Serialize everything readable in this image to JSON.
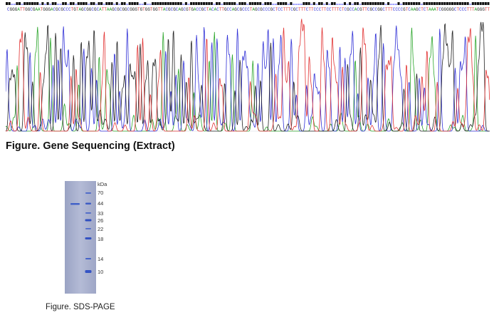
{
  "sequence": "CGGGATTGGCGAATGGGACGCGCCCTGTAGCGGCGCATTAAGCGCGGCGGGTGTGGTGGTTACGCGCAGCGTGACCGCTACACTTGCCAGCGCCCTAGCGCCCGCTCCTTTCGCTTTCTTCCCTTCCTTTCTCGCCACGTTCGCCGGCTTTCCCCGTCAAGCTCTAAATCGGGGGCTCCCTTTAGGGTT",
  "base_colors": {
    "A": "#2aa52a",
    "C": "#2f2fd6",
    "G": "#222222",
    "T": "#e23232"
  },
  "figure1_caption": "Figure. Gene Sequencing (Extract)",
  "gel": {
    "unit": "kDa",
    "markers": [
      "70",
      "44",
      "33",
      "26",
      "22",
      "18",
      "14",
      "10"
    ],
    "gel_color": "#a9b1cf",
    "band_color": "#3f5fc8"
  },
  "figure2_caption": "Figure. SDS-PAGE"
}
